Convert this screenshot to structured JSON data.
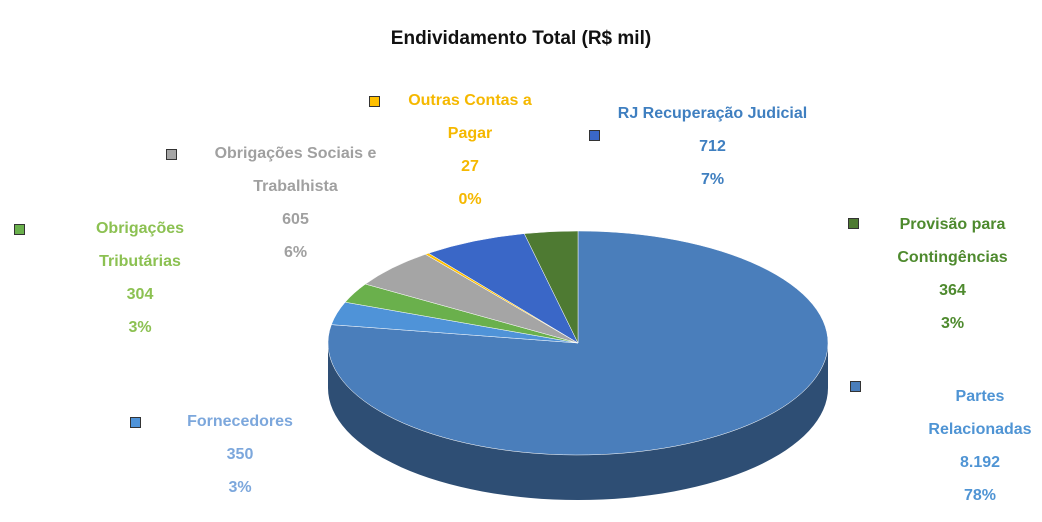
{
  "chart_data": {
    "type": "pie",
    "title": "Endividamento Total (R$ mil)",
    "categories": [
      "Partes Relacionadas",
      "Fornecedores",
      "Obrigações Tributárias",
      "Obrigações Sociais e Trabalhista",
      "Outras Contas a Pagar",
      "RJ Recuperação Judicial",
      "Provisão para Contingências"
    ],
    "values": [
      8192,
      350,
      304,
      605,
      27,
      712,
      364
    ],
    "value_labels": [
      "8.192",
      "350",
      "304",
      "605",
      "27",
      "712",
      "364"
    ],
    "percent_labels": [
      "78%",
      "3%",
      "3%",
      "6%",
      "0%",
      "7%",
      "3%"
    ],
    "colors": [
      "#4a7ebb",
      "#4f93d8",
      "#6ab04c",
      "#a5a5a5",
      "#ffc000",
      "#3a67c7",
      "#4e7a32"
    ],
    "label_colors": [
      "#4f94d4",
      "#7ca7dc",
      "#8cc152",
      "#a0a0a0",
      "#f5b800",
      "#3f7fc0",
      "#4e8a2e"
    ]
  }
}
